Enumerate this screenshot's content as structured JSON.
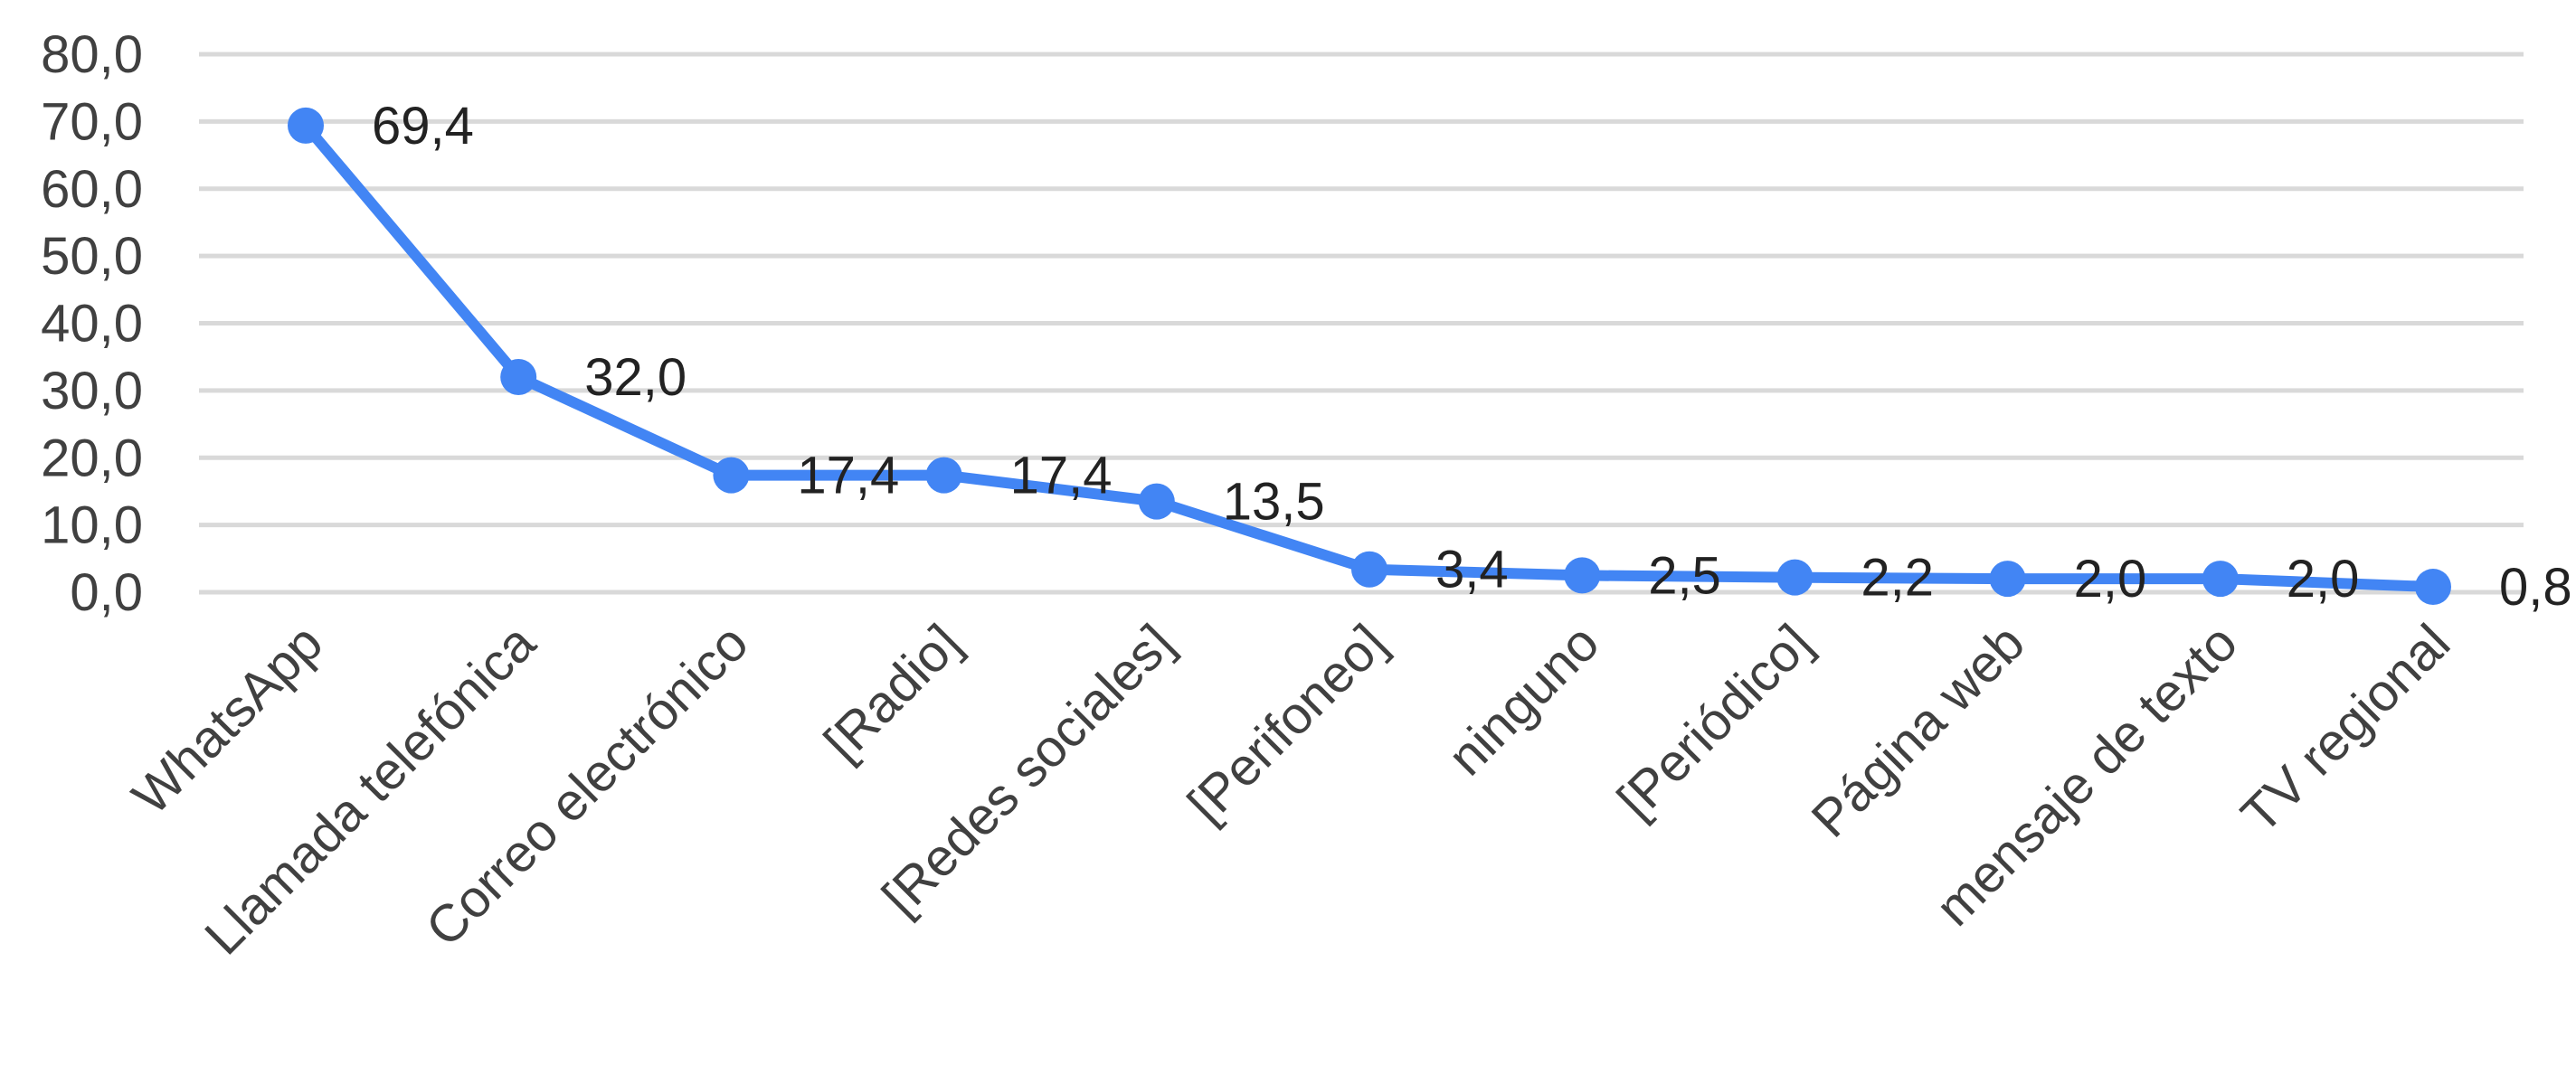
{
  "chart_data": {
    "type": "line",
    "categories": [
      "WhatsApp",
      "Llamada telefónica",
      "Correo electrónico",
      "[Radio]",
      "[Redes sociales]",
      "[Perifoneo]",
      "ninguno",
      "[Periódico]",
      "Página web",
      "mensaje de texto",
      "TV regional"
    ],
    "series": [
      {
        "values": [
          69.4,
          32.0,
          17.4,
          17.4,
          13.5,
          3.4,
          2.5,
          2.2,
          2.0,
          2.0,
          0.8
        ],
        "data_labels": [
          "69,4",
          "32,0",
          "17,4",
          "17,4",
          "13,5",
          "3,4",
          "2,5",
          "2,2",
          "2,0",
          "2,0",
          "0,8"
        ]
      }
    ],
    "y_ticks": [
      0,
      10,
      20,
      30,
      40,
      50,
      60,
      70,
      80
    ],
    "y_tick_labels": [
      "0,0",
      "10,0",
      "20,0",
      "30,0",
      "40,0",
      "50,0",
      "60,0",
      "70,0",
      "80,0"
    ],
    "ylim": [
      0,
      80
    ],
    "grid": true,
    "legend": "none",
    "title": "",
    "xlabel": "",
    "ylabel": "",
    "colors": {
      "line": "#4285f4",
      "grid": "#d9d9d9",
      "text": "#404040"
    }
  }
}
